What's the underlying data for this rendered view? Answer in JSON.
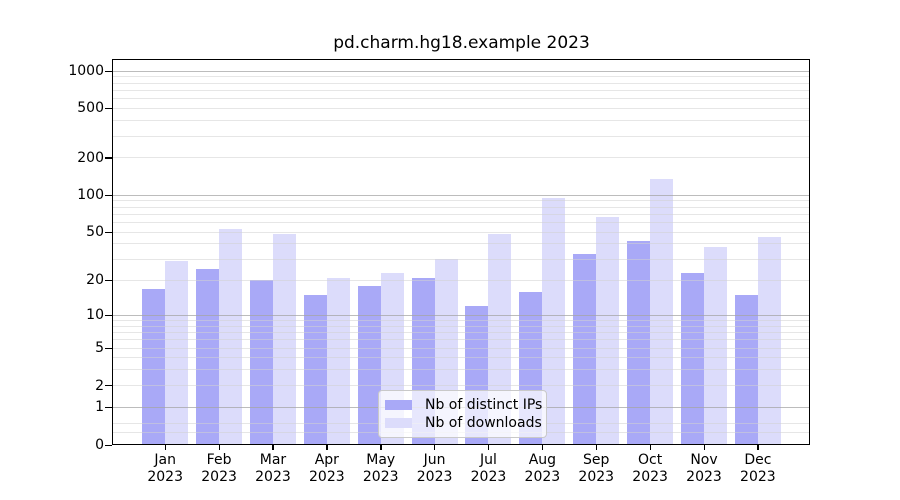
{
  "chart_data": {
    "type": "bar",
    "title": "pd.charm.hg18.example 2023",
    "year": "2023",
    "categories": [
      "Jan",
      "Feb",
      "Mar",
      "Apr",
      "May",
      "Jun",
      "Jul",
      "Aug",
      "Sep",
      "Oct",
      "Nov",
      "Dec"
    ],
    "series": [
      {
        "name": "Nb of distinct IPs",
        "color": "#a9a9f7",
        "values": [
          17,
          25,
          20,
          15,
          18,
          21,
          12,
          16,
          33,
          42,
          23,
          15
        ]
      },
      {
        "name": "Nb of downloads",
        "color": "#dcdcfb",
        "values": [
          29,
          53,
          48,
          21,
          23,
          30,
          48,
          95,
          66,
          135,
          38,
          46
        ]
      }
    ],
    "y_axis": {
      "scale": "log1p",
      "ticks": [
        0,
        1,
        2,
        5,
        10,
        20,
        50,
        100,
        200,
        500,
        1000
      ],
      "major_gridlines": [
        1,
        10,
        100,
        1000
      ],
      "ylim": [
        0,
        1200
      ]
    },
    "x_axis": {
      "label_format": "month-over-year"
    },
    "legend": {
      "position": "inside-bottom-center",
      "entries": [
        "Nb of distinct IPs",
        "Nb of downloads"
      ]
    },
    "grid": true
  }
}
